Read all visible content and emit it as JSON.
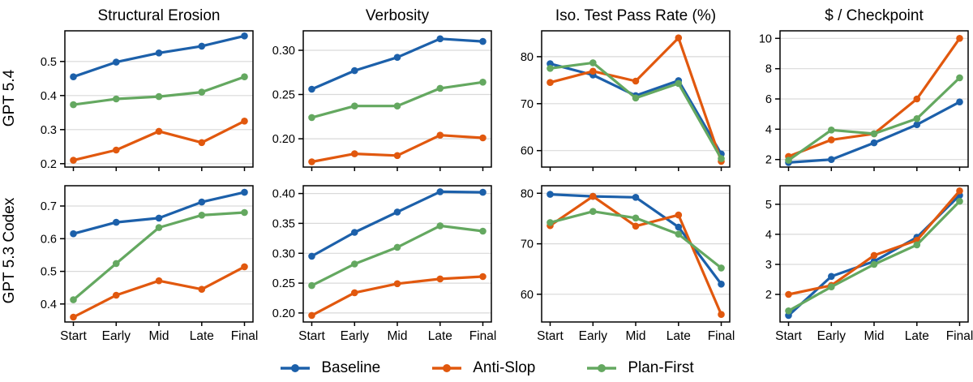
{
  "figure": {
    "x_categories": [
      "Start",
      "Early",
      "Mid",
      "Late",
      "Final"
    ],
    "row_labels": [
      "GPT 5.4",
      "GPT 5.3 Codex"
    ],
    "colors": {
      "baseline": "#1c60aa",
      "anti_slop": "#e1580e",
      "plan_first": "#64a860",
      "gridline": "#d9d9d9",
      "spine": "#000000"
    }
  },
  "legend": {
    "items": [
      {
        "label": "Baseline",
        "color": "#1c60aa"
      },
      {
        "label": "Anti-Slop",
        "color": "#e1580e"
      },
      {
        "label": "Plan-First",
        "color": "#64a860"
      }
    ]
  },
  "chart_data": [
    {
      "type": "line",
      "title": "Structural Erosion",
      "row": "GPT 5.4",
      "x": [
        "Start",
        "Early",
        "Mid",
        "Late",
        "Final"
      ],
      "ylim": [
        0.19,
        0.59
      ],
      "grid": true,
      "legend_position": "bottom-figure",
      "ytick_vals": [
        0.2,
        0.3,
        0.4,
        0.5
      ],
      "ytick_labels": [
        "0.2",
        "0.3",
        "0.4",
        "0.5"
      ],
      "series": [
        {
          "name": "Baseline",
          "color": "#1c60aa",
          "values": [
            0.455,
            0.498,
            0.525,
            0.545,
            0.575
          ]
        },
        {
          "name": "Anti-Slop",
          "color": "#e1580e",
          "values": [
            0.21,
            0.24,
            0.295,
            0.262,
            0.325
          ]
        },
        {
          "name": "Plan-First",
          "color": "#64a860",
          "values": [
            0.373,
            0.39,
            0.397,
            0.41,
            0.455
          ]
        }
      ]
    },
    {
      "type": "line",
      "title": "Verbosity",
      "row": "GPT 5.4",
      "x": [
        "Start",
        "Early",
        "Mid",
        "Late",
        "Final"
      ],
      "ylim": [
        0.168,
        0.322
      ],
      "grid": true,
      "ytick_vals": [
        0.2,
        0.25,
        0.3
      ],
      "ytick_labels": [
        "0.20",
        "0.25",
        "0.30"
      ],
      "series": [
        {
          "name": "Baseline",
          "color": "#1c60aa",
          "values": [
            0.256,
            0.277,
            0.292,
            0.313,
            0.31
          ]
        },
        {
          "name": "Anti-Slop",
          "color": "#e1580e",
          "values": [
            0.174,
            0.183,
            0.181,
            0.204,
            0.201
          ]
        },
        {
          "name": "Plan-First",
          "color": "#64a860",
          "values": [
            0.224,
            0.237,
            0.237,
            0.257,
            0.264
          ]
        }
      ]
    },
    {
      "type": "line",
      "title": "Iso. Test Pass Rate (%)",
      "row": "GPT 5.4",
      "x": [
        "Start",
        "Early",
        "Mid",
        "Late",
        "Final"
      ],
      "ylim": [
        56.5,
        85.5
      ],
      "grid": true,
      "ytick_vals": [
        60,
        70,
        80
      ],
      "ytick_labels": [
        "60",
        "70",
        "80"
      ],
      "series": [
        {
          "name": "Baseline",
          "color": "#1c60aa",
          "values": [
            78.5,
            76.1,
            71.7,
            74.9,
            59.3
          ]
        },
        {
          "name": "Anti-Slop",
          "color": "#e1580e",
          "values": [
            74.5,
            76.9,
            74.8,
            84.0,
            57.7
          ]
        },
        {
          "name": "Plan-First",
          "color": "#64a860",
          "values": [
            77.5,
            78.7,
            71.2,
            74.3,
            58.3
          ]
        }
      ]
    },
    {
      "type": "line",
      "title": "$ / Checkpoint",
      "row": "GPT 5.4",
      "x": [
        "Start",
        "Early",
        "Mid",
        "Late",
        "Final"
      ],
      "ylim": [
        1.5,
        10.5
      ],
      "grid": true,
      "ytick_vals": [
        2,
        4,
        6,
        8,
        10
      ],
      "ytick_labels": [
        "2",
        "4",
        "6",
        "8",
        "10"
      ],
      "series": [
        {
          "name": "Baseline",
          "color": "#1c60aa",
          "values": [
            1.8,
            2.0,
            3.1,
            4.3,
            5.8
          ]
        },
        {
          "name": "Anti-Slop",
          "color": "#e1580e",
          "values": [
            2.2,
            3.3,
            3.7,
            6.0,
            10.0
          ]
        },
        {
          "name": "Plan-First",
          "color": "#64a860",
          "values": [
            1.95,
            3.95,
            3.7,
            4.7,
            7.4
          ]
        }
      ]
    },
    {
      "type": "line",
      "title": "Structural Erosion",
      "row": "GPT 5.3 Codex",
      "x": [
        "Start",
        "Early",
        "Mid",
        "Late",
        "Final"
      ],
      "ylim": [
        0.345,
        0.762
      ],
      "grid": true,
      "ytick_vals": [
        0.4,
        0.5,
        0.6,
        0.7
      ],
      "ytick_labels": [
        "0.4",
        "0.5",
        "0.6",
        "0.7"
      ],
      "series": [
        {
          "name": "Baseline",
          "color": "#1c60aa",
          "values": [
            0.615,
            0.65,
            0.663,
            0.712,
            0.742
          ]
        },
        {
          "name": "Anti-Slop",
          "color": "#e1580e",
          "values": [
            0.36,
            0.427,
            0.471,
            0.445,
            0.514
          ]
        },
        {
          "name": "Plan-First",
          "color": "#64a860",
          "values": [
            0.413,
            0.524,
            0.634,
            0.672,
            0.68
          ]
        }
      ]
    },
    {
      "type": "line",
      "title": "Verbosity",
      "row": "GPT 5.3 Codex",
      "x": [
        "Start",
        "Early",
        "Mid",
        "Late",
        "Final"
      ],
      "ylim": [
        0.185,
        0.413
      ],
      "grid": true,
      "ytick_vals": [
        0.2,
        0.25,
        0.3,
        0.35,
        0.4
      ],
      "ytick_labels": [
        "0.20",
        "0.25",
        "0.30",
        "0.35",
        "0.40"
      ],
      "series": [
        {
          "name": "Baseline",
          "color": "#1c60aa",
          "values": [
            0.295,
            0.335,
            0.369,
            0.403,
            0.402
          ]
        },
        {
          "name": "Anti-Slop",
          "color": "#e1580e",
          "values": [
            0.196,
            0.234,
            0.249,
            0.257,
            0.261
          ]
        },
        {
          "name": "Plan-First",
          "color": "#64a860",
          "values": [
            0.246,
            0.282,
            0.31,
            0.346,
            0.337
          ]
        }
      ]
    },
    {
      "type": "line",
      "title": "Iso. Test Pass Rate (%)",
      "row": "GPT 5.3 Codex",
      "x": [
        "Start",
        "Early",
        "Mid",
        "Late",
        "Final"
      ],
      "ylim": [
        54.5,
        81.5
      ],
      "grid": true,
      "ytick_vals": [
        60,
        70,
        80
      ],
      "ytick_labels": [
        "60",
        "70",
        "80"
      ],
      "series": [
        {
          "name": "Baseline",
          "color": "#1c60aa",
          "values": [
            79.8,
            79.4,
            79.2,
            73.3,
            62.0
          ]
        },
        {
          "name": "Anti-Slop",
          "color": "#e1580e",
          "values": [
            73.6,
            79.4,
            73.5,
            75.7,
            56.0
          ]
        },
        {
          "name": "Plan-First",
          "color": "#64a860",
          "values": [
            74.2,
            76.4,
            75.1,
            71.9,
            65.2
          ]
        }
      ]
    },
    {
      "type": "line",
      "title": "$ / Checkpoint",
      "row": "GPT 5.3 Codex",
      "x": [
        "Start",
        "Early",
        "Mid",
        "Late",
        "Final"
      ],
      "ylim": [
        1.08,
        5.62
      ],
      "grid": true,
      "ytick_vals": [
        2,
        3,
        4,
        5
      ],
      "ytick_labels": [
        "2",
        "3",
        "4",
        "5"
      ],
      "series": [
        {
          "name": "Baseline",
          "color": "#1c60aa",
          "values": [
            1.3,
            2.6,
            3.1,
            3.9,
            5.3
          ]
        },
        {
          "name": "Anti-Slop",
          "color": "#e1580e",
          "values": [
            2.0,
            2.3,
            3.3,
            3.8,
            5.45
          ]
        },
        {
          "name": "Plan-First",
          "color": "#64a860",
          "values": [
            1.45,
            2.25,
            3.0,
            3.65,
            5.1
          ]
        }
      ]
    }
  ]
}
